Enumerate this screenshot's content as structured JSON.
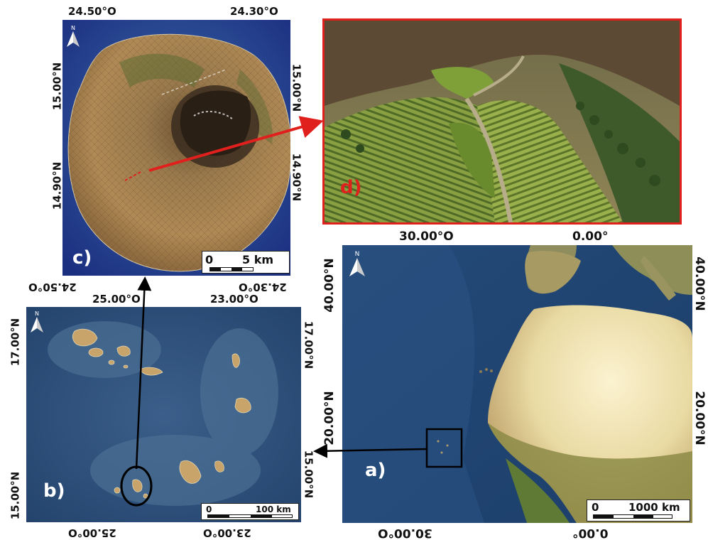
{
  "panels": {
    "a": {
      "label": "a)",
      "top_coords": [
        "30.00°O",
        "0.00°"
      ],
      "bottom_coords": [
        "30.00°O",
        "0.00°"
      ],
      "left_coords": [
        "40.00°N",
        "20.00°N"
      ],
      "right_coords": [
        "40.00°N",
        "20.00°N"
      ],
      "scale": {
        "zero": "0",
        "value": "1000 km"
      }
    },
    "b": {
      "label": "b)",
      "top_coords": [
        "25.00°O",
        "23.00°O"
      ],
      "bottom_coords": [
        "25.00°O",
        "23.00°O"
      ],
      "left_coords": [
        "17.00°N",
        "15.00°N"
      ],
      "right_coords": [
        "17.00°N",
        "15.00°N"
      ],
      "scale": {
        "zero": "0",
        "value": "100 km"
      }
    },
    "c": {
      "label": "c)",
      "top_coords": [
        "24.50°O",
        "24.30°O"
      ],
      "bottom_coords": [
        "24.50°O",
        "24.30°O"
      ],
      "left_coords": [
        "15.00°N",
        "14.90°N"
      ],
      "right_coords": [
        "15.00°N",
        "14.90°N"
      ],
      "scale": {
        "zero": "0",
        "value": "5 km"
      }
    },
    "d": {
      "label": "d)"
    }
  },
  "north_arrow": "N",
  "colors": {
    "ocean_deep": "#1b3d6b",
    "ocean_shelf": "#2f5e86",
    "land_desert": "#e9d9a6",
    "land_green": "#6f7f3d",
    "island_brown": "#a47a45",
    "photo_frame": "#e0201c",
    "photo_label": "#e0201c",
    "arrow_red": "#e0201c",
    "arrow_black": "#000000"
  },
  "icons": [
    "north-arrow-icon"
  ]
}
